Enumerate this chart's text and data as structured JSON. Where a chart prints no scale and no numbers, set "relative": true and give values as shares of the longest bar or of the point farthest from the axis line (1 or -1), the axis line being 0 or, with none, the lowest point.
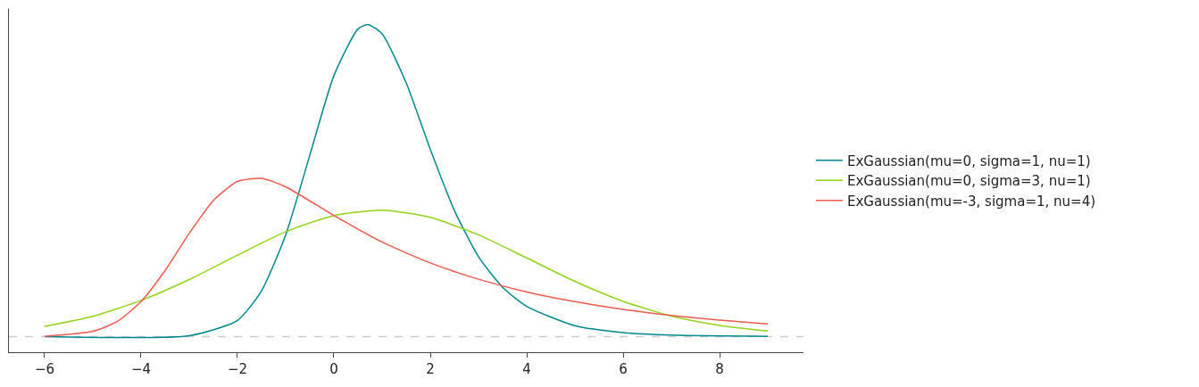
{
  "chart_data": {
    "type": "line",
    "relative": true,
    "legend": "right",
    "grid": false,
    "tick_labels": "x",
    "marker": "none",
    "line_style": "solid",
    "xlim": [
      -6.74,
      9.74
    ],
    "xticks": [
      -6,
      -4,
      -2,
      0,
      2,
      4,
      6,
      8
    ],
    "ref_lines": [
      {
        "axis": "y",
        "value": 0,
        "color": "#cccccc",
        "line_style": "dashed"
      }
    ],
    "series": [
      {
        "name": "ExGaussian(mu=0, sigma=1, nu=1)",
        "color": "#00878f",
        "x": [
          -6,
          -3,
          -2,
          -1.5,
          -1,
          -0.5,
          0,
          0.5,
          0.7,
          1,
          1.5,
          2,
          2.5,
          3,
          3.5,
          4,
          5,
          6,
          7,
          9
        ],
        "values": [
          0,
          0.003,
          0.052,
          0.147,
          0.326,
          0.581,
          0.836,
          0.986,
          1,
          0.97,
          0.813,
          0.6,
          0.404,
          0.256,
          0.158,
          0.097,
          0.035,
          0.013,
          0.005,
          0.001
        ]
      },
      {
        "name": "ExGaussian(mu=0, sigma=3, nu=1)",
        "color": "#94d31b",
        "x": [
          -6,
          -5,
          -4,
          -3,
          -2,
          -1,
          0,
          1,
          2,
          3,
          4,
          5,
          6,
          7,
          8,
          9
        ],
        "values": [
          0.033,
          0.065,
          0.116,
          0.183,
          0.261,
          0.336,
          0.388,
          0.405,
          0.382,
          0.326,
          0.252,
          0.177,
          0.113,
          0.066,
          0.036,
          0.018
        ]
      },
      {
        "name": "ExGaussian(mu=-3, sigma=1, nu=4)",
        "color": "#ee5a4f",
        "x": [
          -6,
          -5,
          -4.5,
          -4,
          -3.5,
          -3,
          -2.5,
          -2,
          -1.5,
          -1,
          0,
          1,
          2,
          3,
          4,
          5,
          6,
          7,
          8,
          9
        ],
        "values": [
          0.001,
          0.017,
          0.048,
          0.112,
          0.212,
          0.331,
          0.436,
          0.497,
          0.507,
          0.48,
          0.388,
          0.303,
          0.236,
          0.184,
          0.143,
          0.112,
          0.087,
          0.068,
          0.053,
          0.041
        ]
      }
    ]
  }
}
